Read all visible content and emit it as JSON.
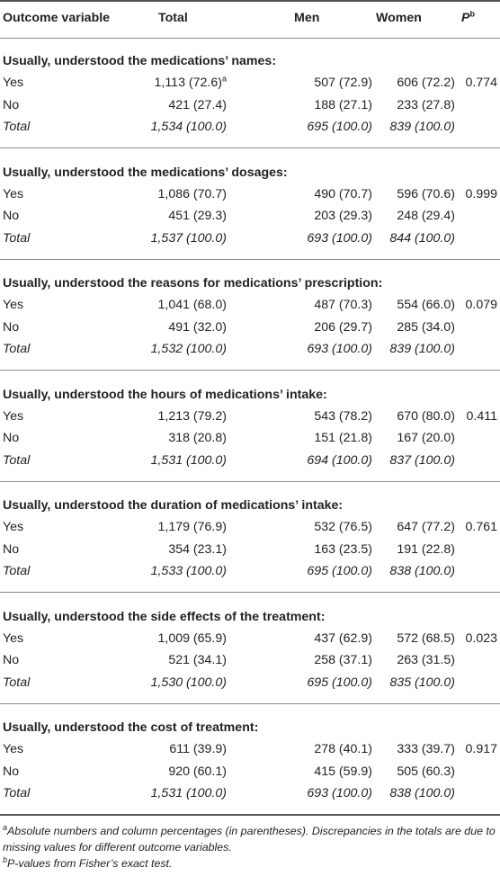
{
  "header": {
    "col_outcome": "Outcome variable",
    "col_total": "Total",
    "col_men": "Men",
    "col_women": "Women",
    "col_p": "P",
    "col_p_sup": "b"
  },
  "sections": [
    {
      "title": "Usually, understood the medications’ names:",
      "p": "0.774",
      "rows": [
        {
          "label": "Yes",
          "total": "1,113 (72.6)",
          "total_sup": "a",
          "men": "507 (72.9)",
          "women": "606 (72.2)"
        },
        {
          "label": "No",
          "total": "421 (27.4)",
          "men": "188 (27.1)",
          "women": "233 (27.8)"
        },
        {
          "label": "Total",
          "total": "1,534 (100.0)",
          "men": "695 (100.0)",
          "women": "839 (100.0)"
        }
      ]
    },
    {
      "title": "Usually, understood the medications’ dosages:",
      "p": "0.999",
      "rows": [
        {
          "label": "Yes",
          "total": "1,086 (70.7)",
          "men": "490 (70.7)",
          "women": "596 (70.6)"
        },
        {
          "label": "No",
          "total": "451 (29.3)",
          "men": "203 (29.3)",
          "women": "248 (29.4)"
        },
        {
          "label": "Total",
          "total": "1,537 (100.0)",
          "men": "693 (100.0)",
          "women": "844 (100.0)"
        }
      ]
    },
    {
      "title": "Usually, understood the reasons for medications’ prescription:",
      "p": "0.079",
      "rows": [
        {
          "label": "Yes",
          "total": "1,041 (68.0)",
          "men": "487 (70.3)",
          "women": "554 (66.0)"
        },
        {
          "label": "No",
          "total": "491 (32.0)",
          "men": "206 (29.7)",
          "women": "285 (34.0)"
        },
        {
          "label": "Total",
          "total": "1,532 (100.0)",
          "men": "693 (100.0)",
          "women": "839 (100.0)"
        }
      ]
    },
    {
      "title": "Usually, understood the hours of medications’ intake:",
      "p": "0.411",
      "rows": [
        {
          "label": "Yes",
          "total": "1,213 (79.2)",
          "men": "543 (78.2)",
          "women": "670 (80.0)"
        },
        {
          "label": "No",
          "total": "318 (20.8)",
          "men": "151 (21.8)",
          "women": "167 (20.0)"
        },
        {
          "label": "Total",
          "total": "1,531 (100.0)",
          "men": "694 (100.0)",
          "women": "837 (100.0)"
        }
      ]
    },
    {
      "title": "Usually, understood the duration of medications’ intake:",
      "p": "0.761",
      "rows": [
        {
          "label": "Yes",
          "total": "1,179 (76.9)",
          "men": "532 (76.5)",
          "women": "647 (77.2)"
        },
        {
          "label": "No",
          "total": "354 (23.1)",
          "men": "163 (23.5)",
          "women": "191 (22.8)"
        },
        {
          "label": "Total",
          "total": "1,533 (100.0)",
          "men": "695 (100.0)",
          "women": "838 (100.0)"
        }
      ]
    },
    {
      "title": "Usually, understood the side effects of the treatment:",
      "p": "0.023",
      "rows": [
        {
          "label": "Yes",
          "total": "1,009 (65.9)",
          "men": "437 (62.9)",
          "women": "572 (68.5)"
        },
        {
          "label": "No",
          "total": "521 (34.1)",
          "men": "258 (37.1)",
          "women": "263 (31.5)"
        },
        {
          "label": "Total",
          "total": "1,530 (100.0)",
          "men": "695 (100.0)",
          "women": "835 (100.0)"
        }
      ]
    },
    {
      "title": "Usually, understood the cost of treatment:",
      "p": "0.917",
      "rows": [
        {
          "label": "Yes",
          "total": "611 (39.9)",
          "men": "278 (40.1)",
          "women": "333 (39.7)"
        },
        {
          "label": "No",
          "total": "920 (60.1)",
          "men": "415 (59.9)",
          "women": "505 (60.3)"
        },
        {
          "label": "Total",
          "total": "1,531 (100.0)",
          "men": "693 (100.0)",
          "women": "838 (100.0)"
        }
      ]
    }
  ],
  "footnotes": {
    "a_mark": "a",
    "a_text": "Absolute numbers and column percentages (in parentheses). Discrepancies in the totals are due to missing values for different outcome variables.",
    "b_mark": "b",
    "b_text": "P-values from Fisher’s exact test."
  }
}
